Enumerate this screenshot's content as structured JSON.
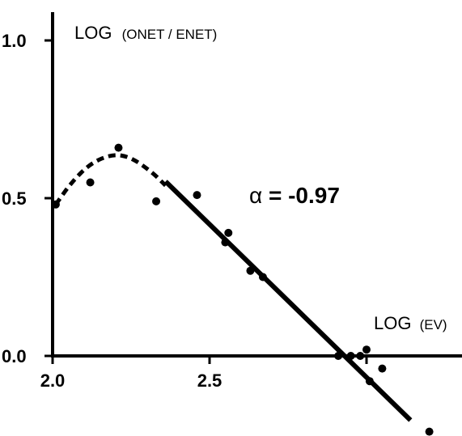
{
  "chart_data": {
    "type": "scatter",
    "title": "",
    "ylabel_prefix": "LOG",
    "ylabel_args": "(ONET / ENET)",
    "xlabel_prefix": "LOG",
    "xlabel_args": "(EV)",
    "xlim": [
      2.0,
      3.5
    ],
    "ylim": [
      -0.25,
      1.1
    ],
    "x_ticks": [
      {
        "value": 2.0,
        "label": "2.0"
      },
      {
        "value": 2.5,
        "label": "2.5"
      }
    ],
    "y_ticks": [
      {
        "value": 0.0,
        "label": "0.0"
      },
      {
        "value": 0.5,
        "label": "0.5"
      },
      {
        "value": 1.0,
        "label": "1.0"
      }
    ],
    "points": [
      {
        "x": 2.01,
        "y": 0.48
      },
      {
        "x": 2.12,
        "y": 0.55
      },
      {
        "x": 2.21,
        "y": 0.66
      },
      {
        "x": 2.33,
        "y": 0.49
      },
      {
        "x": 2.46,
        "y": 0.51
      },
      {
        "x": 2.55,
        "y": 0.36
      },
      {
        "x": 2.56,
        "y": 0.39
      },
      {
        "x": 2.63,
        "y": 0.27
      },
      {
        "x": 2.67,
        "y": 0.25
      },
      {
        "x": 2.91,
        "y": 0.0
      },
      {
        "x": 2.95,
        "y": 0.0
      },
      {
        "x": 2.98,
        "y": 0.0
      },
      {
        "x": 3.0,
        "y": 0.02
      },
      {
        "x": 3.01,
        "y": -0.08
      },
      {
        "x": 3.05,
        "y": -0.04
      },
      {
        "x": 3.2,
        "y": -0.24
      }
    ],
    "dashed_curve": [
      {
        "x": 2.01,
        "y": 0.48
      },
      {
        "x": 2.06,
        "y": 0.55
      },
      {
        "x": 2.12,
        "y": 0.61
      },
      {
        "x": 2.19,
        "y": 0.64
      },
      {
        "x": 2.25,
        "y": 0.63
      },
      {
        "x": 2.32,
        "y": 0.58
      },
      {
        "x": 2.36,
        "y": 0.54
      }
    ],
    "fit_line": {
      "slope": -0.97,
      "x_start": 2.36,
      "x_end": 3.14
    },
    "annotation": {
      "symbol": "α",
      "text": "= -0.97"
    },
    "grid": false,
    "legend": "none"
  }
}
